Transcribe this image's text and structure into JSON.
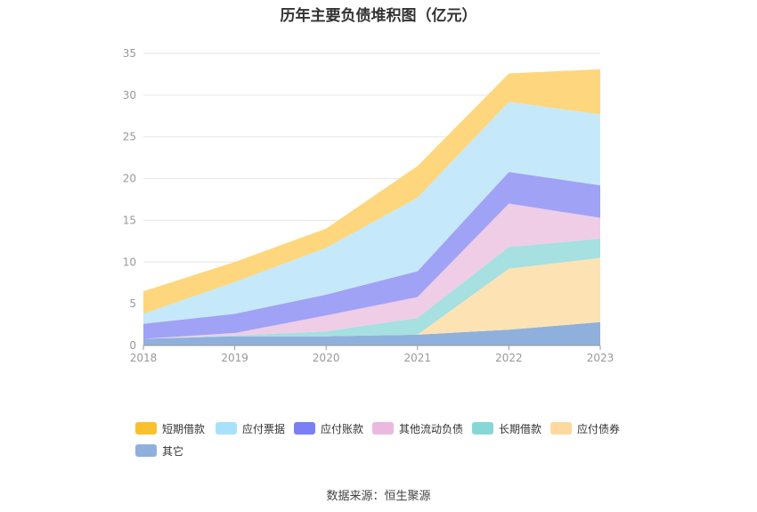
{
  "chart_data": {
    "type": "area",
    "stacked": true,
    "title": "历年主要负债堆积图（亿元）",
    "categories": [
      "2018",
      "2019",
      "2020",
      "2021",
      "2022",
      "2023"
    ],
    "ylim": [
      0,
      35
    ],
    "yticks": [
      0,
      5,
      10,
      15,
      20,
      25,
      30,
      35
    ],
    "grid": true,
    "legend_position": "bottom",
    "series": [
      {
        "name": "其它",
        "color": "#8fb0dc",
        "values": [
          0.8,
          1.1,
          1.1,
          1.3,
          1.9,
          2.8
        ]
      },
      {
        "name": "应付债券",
        "color": "#fde2b4",
        "values": [
          0.0,
          0.0,
          0.0,
          0.0,
          7.3,
          7.7
        ]
      },
      {
        "name": "长期借款",
        "color": "#a6e0e0",
        "values": [
          0.0,
          0.1,
          0.6,
          2.0,
          2.6,
          2.3
        ]
      },
      {
        "name": "其他流动负债",
        "color": "#efcde6",
        "values": [
          0.0,
          0.3,
          1.9,
          2.5,
          5.2,
          2.5
        ]
      },
      {
        "name": "应付账款",
        "color": "#a0a2f6",
        "values": [
          1.8,
          2.3,
          2.5,
          3.1,
          3.8,
          3.9
        ]
      },
      {
        "name": "应付票据",
        "color": "#c5e9fb",
        "values": [
          1.2,
          3.8,
          5.6,
          8.8,
          8.4,
          8.5
        ]
      },
      {
        "name": "短期借款",
        "color": "#fed67d",
        "values": [
          2.7,
          2.4,
          2.3,
          3.8,
          3.4,
          5.4
        ]
      }
    ]
  },
  "legend": [
    {
      "label": "短期借款",
      "color": "#fbc02d"
    },
    {
      "label": "应付票据",
      "color": "#a9e1fb"
    },
    {
      "label": "应付账款",
      "color": "#7b7ff5"
    },
    {
      "label": "其他流动负债",
      "color": "#ebb9df"
    },
    {
      "label": "长期借款",
      "color": "#86d8d6"
    },
    {
      "label": "应付债券",
      "color": "#fdd9a0"
    },
    {
      "label": "其它",
      "color": "#8fb0dc"
    }
  ],
  "source": "数据来源：恒生聚源"
}
